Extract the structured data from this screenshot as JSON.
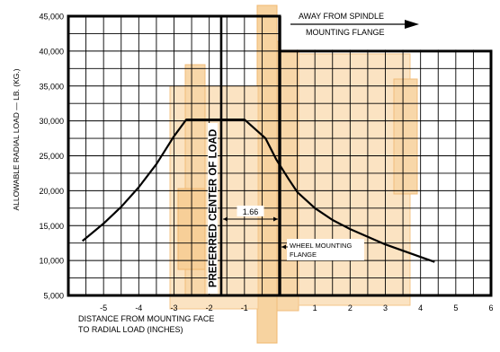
{
  "chart_data": {
    "type": "line",
    "title": "",
    "xlabel": "DISTANCE FROM MOUNTING FACE TO RADIAL LOAD (INCHES)",
    "xlabel_lines": [
      "DISTANCE FROM MOUNTING FACE",
      "TO RADIAL LOAD (INCHES)"
    ],
    "ylabel": "ALLOWABLE RADIAL LOAD — LB. (KG.)",
    "xlim": [
      -6,
      6
    ],
    "ylim": [
      5000,
      45000
    ],
    "x_ticks": [
      -5,
      -4,
      -3,
      -2,
      -1,
      1,
      2,
      3,
      4,
      5,
      6
    ],
    "x_tick_labels": [
      "-5",
      "-4",
      "-3",
      "-2",
      "-1",
      "1",
      "2",
      "3",
      "4",
      "5",
      "6"
    ],
    "y_ticks": [
      5000,
      10000,
      15000,
      20000,
      25000,
      30000,
      35000,
      40000,
      45000
    ],
    "y_tick_labels": [
      "5,000",
      "10,000",
      "15,000",
      "20,000",
      "25,000",
      "30,000",
      "35,000",
      "40,000",
      "45,000"
    ],
    "grid": true,
    "series": [
      {
        "x": [
          -5.6,
          -5.0,
          -4.5,
          -4.0,
          -3.5,
          -3.0,
          -2.65,
          -2.0,
          -1.0,
          -0.4,
          -0.1,
          0.25,
          0.5,
          1.0,
          1.5,
          2.0,
          3.0,
          4.0,
          4.4
        ],
        "y": [
          12800,
          15300,
          17700,
          20500,
          23800,
          27800,
          30200,
          30200,
          30200,
          27500,
          24500,
          21700,
          19800,
          17500,
          15800,
          14500,
          12300,
          10500,
          9800
        ]
      }
    ],
    "reference_lines": [
      {
        "x": -1.66,
        "label": "PREFERRED CENTER OF LOAD"
      },
      {
        "x": 0,
        "label_lines": [
          "WHEEL MOUNTING",
          "FLANGE"
        ]
      }
    ],
    "dimension": {
      "from": -1.66,
      "to": 0,
      "label": "1.66"
    },
    "direction_arrow": {
      "label_lines": [
        "AWAY FROM SPINDLE",
        "MOUNTING FLANGE"
      ]
    },
    "colors": {
      "ink": "#000000",
      "grid": "#000000",
      "background_sketch": "#f5c98a"
    }
  }
}
